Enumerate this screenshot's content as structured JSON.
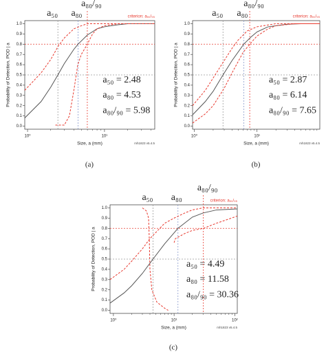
{
  "chart_data": [
    {
      "type": "line",
      "caption": "(a)",
      "xlabel": "Size, a   (mm)",
      "ylabel": "Probability of Detection, POD | a",
      "note": "mh1823 v5.4.5",
      "criterion": "criterion: a₉₀/₉₅",
      "log_x": true,
      "xlim": [
        0.92,
        45
      ],
      "ylim": [
        -0.03,
        1.03
      ],
      "xticks": [
        {
          "value": 1,
          "label": "10⁰"
        },
        {
          "value": 10,
          "label": "10¹"
        }
      ],
      "xminor_ticks": [
        2,
        3,
        4,
        5,
        6,
        7,
        8,
        9,
        20,
        30,
        40
      ],
      "yticks": [
        {
          "value": 0,
          "label": "0.0"
        },
        {
          "value": 0.1,
          "label": "0.1"
        },
        {
          "value": 0.2,
          "label": "0.2"
        },
        {
          "value": 0.3,
          "label": "0.3"
        },
        {
          "value": 0.4,
          "label": "0.4"
        },
        {
          "value": 0.5,
          "label": "0.5"
        },
        {
          "value": 0.6,
          "label": "0.6"
        },
        {
          "value": 0.7,
          "label": "0.7"
        },
        {
          "value": 0.8,
          "label": "0.8"
        },
        {
          "value": 0.9,
          "label": "0.9"
        },
        {
          "value": 1,
          "label": "1.0"
        }
      ],
      "series": [
        {
          "color": "#555555",
          "dash": "none",
          "x": [
            0.92,
            1.5,
            2,
            2.48,
            3,
            4,
            4.53,
            6,
            8,
            10,
            15,
            20,
            45
          ],
          "values": [
            0.08,
            0.24,
            0.38,
            0.5,
            0.61,
            0.75,
            0.8,
            0.89,
            0.95,
            0.97,
            0.99,
            1.0,
            1.0
          ]
        },
        {
          "color": "#e8392e",
          "dash": "3,2",
          "x": [
            0.92,
            1.5,
            2,
            2.5,
            3,
            4,
            5,
            6,
            45
          ],
          "values": [
            0.35,
            0.52,
            0.65,
            0.78,
            0.86,
            0.95,
            0.98,
            1.0,
            1.0
          ]
        },
        {
          "color": "#e8392e",
          "dash": "3,2",
          "x": [
            2.3,
            3,
            3.5,
            4,
            4.5,
            5,
            5.98,
            7,
            8,
            10,
            15,
            45
          ],
          "values": [
            0.01,
            0.01,
            0.1,
            0.35,
            0.6,
            0.7,
            0.8,
            0.9,
            0.95,
            0.98,
            1.0,
            1.0
          ]
        }
      ],
      "markers": [
        {
          "name": "a₅₀",
          "label": "a₅₀ = 2.48",
          "value": 2.48,
          "color": "#999999"
        },
        {
          "name": "a₈₀",
          "label": "a₈₀ = 4.53",
          "value": 4.53,
          "color": "#8899cc"
        },
        {
          "name": "a₈₀/₉₀",
          "label": "a₈₀/₉₀ = 5.98",
          "value": 5.98,
          "color": "#e8392e"
        }
      ],
      "hlines": [
        {
          "value": 0.5,
          "color": "#999999"
        },
        {
          "value": 0.8,
          "color": "#e8392e"
        }
      ]
    },
    {
      "type": "line",
      "caption": "(b)",
      "xlabel": "Size, a   (mm)",
      "ylabel": "Probability of Detection, POD | a",
      "note": "mh1823 v5.4.5",
      "criterion": "criterion: a₉₀/₉₅",
      "log_x": true,
      "xlim": [
        0.94,
        100
      ],
      "ylim": [
        -0.03,
        1.03
      ],
      "xticks": [
        {
          "value": 1,
          "label": "10⁰"
        },
        {
          "value": 10,
          "label": "10¹"
        }
      ],
      "xminor_ticks": [
        2,
        3,
        4,
        5,
        6,
        7,
        8,
        9,
        20,
        30,
        40,
        50,
        60,
        70,
        80,
        90
      ],
      "yticks": [
        {
          "value": 0,
          "label": "0.0"
        },
        {
          "value": 0.1,
          "label": "0.1"
        },
        {
          "value": 0.2,
          "label": "0.2"
        },
        {
          "value": 0.3,
          "label": "0.3"
        },
        {
          "value": 0.4,
          "label": "0.4"
        },
        {
          "value": 0.5,
          "label": "0.5"
        },
        {
          "value": 0.6,
          "label": "0.6"
        },
        {
          "value": 0.7,
          "label": "0.7"
        },
        {
          "value": 0.8,
          "label": "0.8"
        },
        {
          "value": 0.9,
          "label": "0.9"
        },
        {
          "value": 1,
          "label": "1.0"
        }
      ],
      "series": [
        {
          "color": "#555555",
          "dash": "none",
          "x": [
            0.94,
            1.5,
            2,
            2.87,
            4,
            6.14,
            8,
            10,
            15,
            20,
            30,
            50,
            100
          ],
          "values": [
            0.11,
            0.24,
            0.34,
            0.5,
            0.64,
            0.8,
            0.87,
            0.92,
            0.97,
            0.98,
            0.995,
            1.0,
            1.0
          ]
        },
        {
          "color": "#e8392e",
          "dash": "3,2",
          "x": [
            0.94,
            1.5,
            2,
            3,
            4,
            5,
            7,
            10,
            20,
            100
          ],
          "values": [
            0.2,
            0.35,
            0.47,
            0.64,
            0.76,
            0.84,
            0.93,
            0.97,
            1.0,
            1.0
          ]
        },
        {
          "color": "#e8392e",
          "dash": "3,2",
          "x": [
            0.94,
            1.5,
            2,
            3,
            4,
            5,
            6,
            7.65,
            10,
            15,
            20,
            40,
            100
          ],
          "values": [
            0.03,
            0.12,
            0.2,
            0.37,
            0.52,
            0.63,
            0.72,
            0.8,
            0.88,
            0.95,
            0.98,
            1.0,
            1.0
          ]
        }
      ],
      "markers": [
        {
          "name": "a₅₀",
          "label": "a₅₀ = 2.87",
          "value": 2.87,
          "color": "#999999"
        },
        {
          "name": "a₈₀",
          "label": "a₈₀ = 6.14",
          "value": 6.14,
          "color": "#8899cc"
        },
        {
          "name": "a₈₀/₉₀",
          "label": "a₈₀/₉₀ = 7.65",
          "value": 7.65,
          "color": "#e8392e"
        }
      ],
      "hlines": [
        {
          "value": 0.5,
          "color": "#999999"
        },
        {
          "value": 0.8,
          "color": "#e8392e"
        }
      ]
    },
    {
      "type": "line",
      "caption": "(c)",
      "xlabel": "Size, a   (mm)",
      "ylabel": "Probability of Detection, POD | a",
      "note": "mh1823 v5.4.5",
      "criterion": "criterion: a₉₀/₉₅",
      "log_x": true,
      "xlim": [
        0.88,
        110
      ],
      "ylim": [
        -0.03,
        1.03
      ],
      "xticks": [
        {
          "value": 1,
          "label": "10⁰"
        },
        {
          "value": 10,
          "label": "10¹"
        },
        {
          "value": 100,
          "label": "10²"
        }
      ],
      "xminor_ticks": [
        2,
        3,
        4,
        5,
        6,
        7,
        8,
        9,
        20,
        30,
        40,
        50,
        60,
        70,
        80,
        90
      ],
      "yticks": [
        {
          "value": 0,
          "label": "0.0"
        },
        {
          "value": 0.1,
          "label": "0.1"
        },
        {
          "value": 0.2,
          "label": "0.2"
        },
        {
          "value": 0.3,
          "label": "0.3"
        },
        {
          "value": 0.4,
          "label": "0.4"
        },
        {
          "value": 0.5,
          "label": "0.5"
        },
        {
          "value": 0.6,
          "label": "0.6"
        },
        {
          "value": 0.7,
          "label": "0.7"
        },
        {
          "value": 0.8,
          "label": "0.8"
        },
        {
          "value": 0.9,
          "label": "0.9"
        },
        {
          "value": 1,
          "label": "1.0"
        }
      ],
      "series": [
        {
          "color": "#555555",
          "dash": "none",
          "x": [
            0.88,
            1.5,
            2,
            3,
            4.49,
            7,
            11.58,
            20,
            30,
            50,
            110
          ],
          "values": [
            0.07,
            0.17,
            0.24,
            0.36,
            0.5,
            0.65,
            0.8,
            0.91,
            0.95,
            0.98,
            0.99
          ]
        },
        {
          "color": "#e8392e",
          "dash": "3,2",
          "x": [
            0.88,
            1.5,
            2,
            3,
            4,
            5,
            7,
            10,
            15,
            20,
            30,
            110
          ],
          "values": [
            0.3,
            0.4,
            0.48,
            0.6,
            0.7,
            0.76,
            0.85,
            0.9,
            0.95,
            0.98,
            1.0,
            1.0
          ]
        },
        {
          "color": "#e8392e",
          "dash": "3,2",
          "x": [
            3,
            3.5,
            3.8,
            3.9,
            4,
            4.3,
            5.2,
            7,
            8,
            null,
            10,
            10.5,
            15,
            20,
            30.36,
            50,
            110
          ],
          "values": [
            1.0,
            0.97,
            0.9,
            0.7,
            0.4,
            0.2,
            0.08,
            0.02,
            0.0,
            null,
            0.66,
            0.7,
            0.75,
            0.78,
            0.8,
            0.85,
            0.92
          ]
        }
      ],
      "markers": [
        {
          "name": "a₅₀",
          "label": "a₅₀ = 4.49",
          "value": 4.49,
          "color": "#999999"
        },
        {
          "name": "a₈₀",
          "label": "a₈₀ = 11.58",
          "value": 11.58,
          "color": "#8899cc"
        },
        {
          "name": "a₈₀/₉₀",
          "label": "a₈₀/₉₀ = 30.36",
          "value": 30.36,
          "color": "#e8392e"
        }
      ],
      "hlines": [
        {
          "value": 0.5,
          "color": "#999999"
        },
        {
          "value": 0.8,
          "color": "#e8392e"
        }
      ]
    }
  ]
}
